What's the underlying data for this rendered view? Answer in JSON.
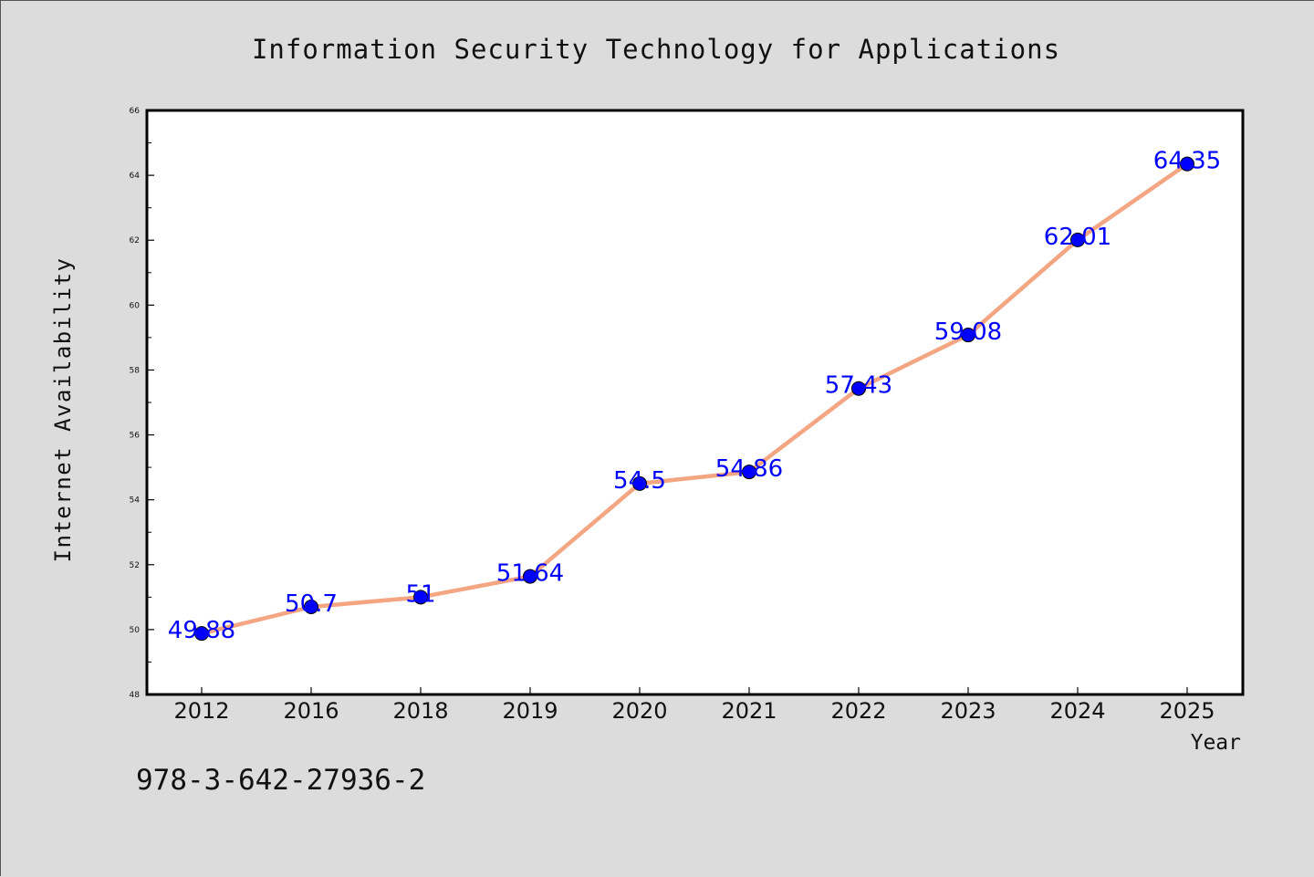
{
  "chart_data": {
    "type": "line",
    "title": "Information Security Technology for Applications",
    "xlabel": "Year",
    "ylabel": "Internet Availability",
    "categories": [
      "2012",
      "2016",
      "2018",
      "2019",
      "2020",
      "2021",
      "2022",
      "2023",
      "2024",
      "2025"
    ],
    "series": [
      {
        "values": [
          49.88,
          50.7,
          51,
          51.64,
          54.5,
          54.86,
          57.43,
          59.08,
          62.01,
          64.35
        ],
        "data_labels": [
          "49.88",
          "50.7",
          "51",
          "51.64",
          "54.5",
          "54.86",
          "57.43",
          "59.08",
          "62.01",
          "64.35"
        ],
        "line_color": "#f4a582",
        "marker_color": "#0000ff"
      }
    ],
    "ylim": [
      48,
      66
    ],
    "yticks": [
      "48",
      "50",
      "52",
      "54",
      "56",
      "58",
      "60",
      "62",
      "64",
      "66"
    ],
    "grid": false,
    "legend": "none",
    "annotation": "978-3-642-27936-2",
    "label_color": "#0000ff"
  }
}
